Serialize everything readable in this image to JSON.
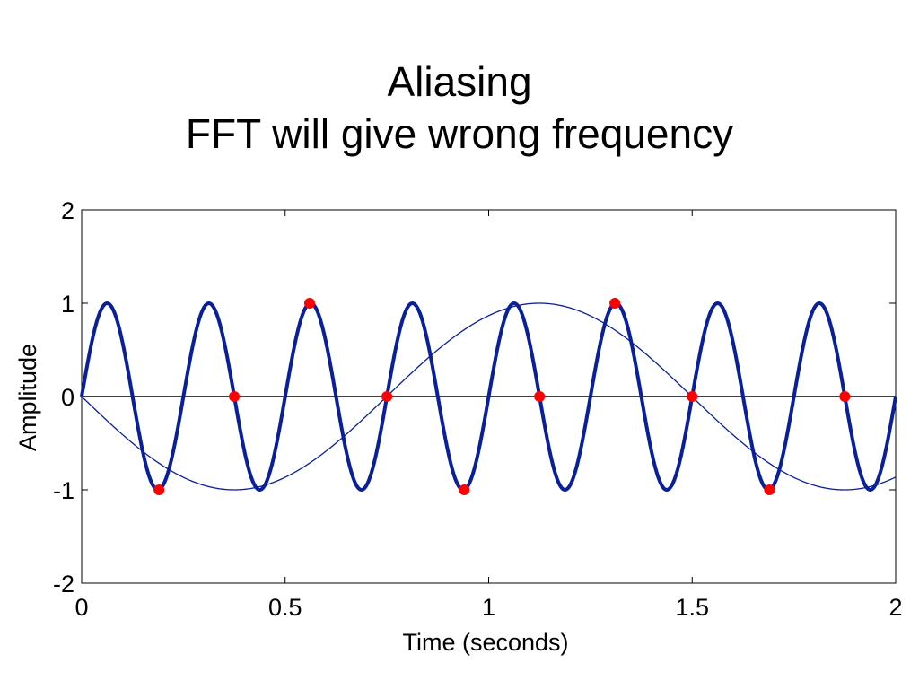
{
  "slide": {
    "title_line1": "Aliasing",
    "title_line2": "FFT will give wrong frequency"
  },
  "colors": {
    "signal": "#0a1f9a",
    "samples": "#ff0000",
    "axis": "#000000",
    "background": "#ffffff"
  },
  "chart_data": {
    "type": "line",
    "title": "",
    "xlabel": "Time (seconds)",
    "ylabel": "Amplitude",
    "xlim": [
      0,
      2
    ],
    "ylim": [
      -2,
      2
    ],
    "xticks": [
      "0",
      "0.5",
      "1",
      "1.5",
      "2"
    ],
    "yticks": [
      "2",
      "1",
      "0",
      "-1",
      "-2"
    ],
    "grid": false,
    "legend": "none",
    "series": [
      {
        "kind": "sine",
        "frequency_hz": 4,
        "amplitude": 1,
        "phase_sign": 1,
        "style": "thick"
      },
      {
        "kind": "sine",
        "frequency_hz": 0.667,
        "amplitude": 1,
        "phase_sign": -1,
        "style": "thin"
      },
      {
        "kind": "samples",
        "x": [
          0.19,
          0.375,
          0.56,
          0.75,
          0.94,
          1.125,
          1.31,
          1.5,
          1.69,
          1.875
        ],
        "y": [
          -1,
          0,
          1,
          0,
          -1,
          0,
          1,
          0,
          -1,
          0
        ]
      }
    ]
  }
}
